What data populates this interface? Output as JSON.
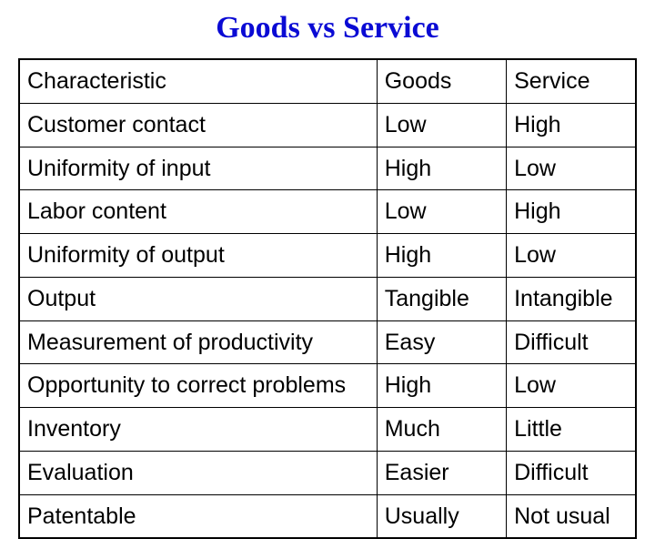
{
  "title": "Goods vs Service",
  "title_color": "#0a0ad4",
  "title_fontsize": 34,
  "title_font": "Times New Roman",
  "cell_fontsize": 25,
  "cell_font": "Arial",
  "text_color": "#000000",
  "background_color": "#ffffff",
  "border_color": "#000000",
  "table": {
    "type": "table",
    "columns": [
      "Characteristic",
      "Goods",
      "Service"
    ],
    "column_widths": [
      "58%",
      "21%",
      "21%"
    ],
    "rows": [
      [
        "Characteristic",
        "Goods",
        "Service"
      ],
      [
        "Customer contact",
        "Low",
        "High"
      ],
      [
        "Uniformity of input",
        "High",
        "Low"
      ],
      [
        "Labor content",
        "Low",
        "High"
      ],
      [
        "Uniformity of output",
        "High",
        "Low"
      ],
      [
        "Output",
        "Tangible",
        "Intangible"
      ],
      [
        "Measurement of productivity",
        "Easy",
        "Difficult"
      ],
      [
        "Opportunity to correct problems",
        "High",
        "Low"
      ],
      [
        "Inventory",
        "Much",
        "Little"
      ],
      [
        "Evaluation",
        "Easier",
        "Difficult"
      ],
      [
        "Patentable",
        "Usually",
        "Not usual"
      ]
    ]
  }
}
